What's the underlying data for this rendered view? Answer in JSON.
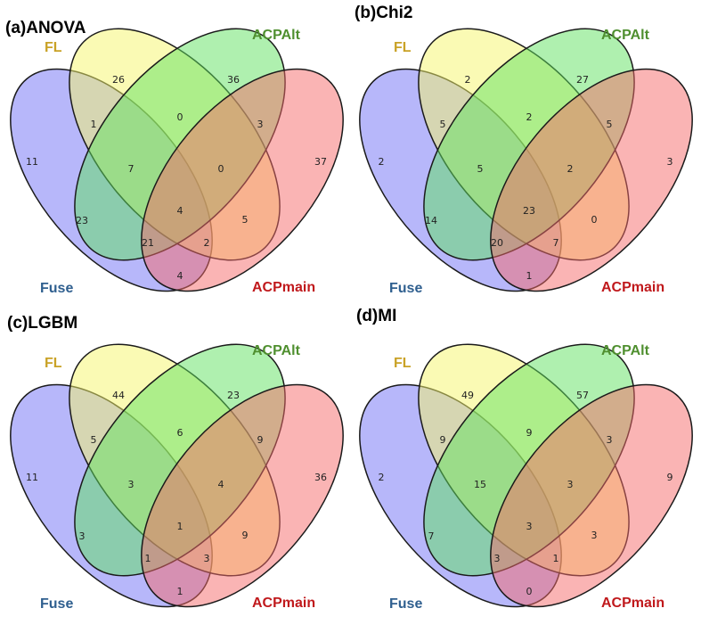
{
  "figure": {
    "panels": [
      {
        "title": "(a)ANOVA",
        "labels": {
          "FL": "FL",
          "ACPAlt": "ACPAlt",
          "Fuse": "Fuse",
          "ACPmain": "ACPmain"
        },
        "regions": {
          "Fuse": "11",
          "FL": "26",
          "ACPAlt": "36",
          "ACPmain": "37",
          "Fuse_FL": "1",
          "FL_ACPAlt": "0",
          "ACPAlt_ACPmain": "3",
          "Fuse_ACPmain": "4",
          "Fuse_ACPAlt": "23",
          "FL_ACPmain": "5",
          "Fuse_FL_ACPAlt": "7",
          "FL_ACPAlt_ACPmain": "0",
          "Fuse_ACPAlt_ACPmain": "21",
          "Fuse_FL_ACPmain": "2",
          "all": "4"
        }
      },
      {
        "title": "(b)Chi2",
        "labels": {
          "FL": "FL",
          "ACPAlt": "ACPAlt",
          "Fuse": "Fuse",
          "ACPmain": "ACPmain"
        },
        "regions": {
          "Fuse": "2",
          "FL": "2",
          "ACPAlt": "27",
          "ACPmain": "3",
          "Fuse_FL": "5",
          "FL_ACPAlt": "2",
          "ACPAlt_ACPmain": "5",
          "Fuse_ACPmain": "1",
          "Fuse_ACPAlt": "14",
          "FL_ACPmain": "0",
          "Fuse_FL_ACPAlt": "5",
          "FL_ACPAlt_ACPmain": "2",
          "Fuse_ACPAlt_ACPmain": "20",
          "Fuse_FL_ACPmain": "7",
          "all": "23"
        }
      },
      {
        "title": "(c)LGBM",
        "labels": {
          "FL": "FL",
          "ACPAlt": "ACPAlt",
          "Fuse": "Fuse",
          "ACPmain": "ACPmain"
        },
        "regions": {
          "Fuse": "11",
          "FL": "44",
          "ACPAlt": "23",
          "ACPmain": "36",
          "Fuse_FL": "5",
          "FL_ACPAlt": "6",
          "ACPAlt_ACPmain": "9",
          "Fuse_ACPmain": "1",
          "Fuse_ACPAlt": "3",
          "FL_ACPmain": "9",
          "Fuse_FL_ACPAlt": "3",
          "FL_ACPAlt_ACPmain": "4",
          "Fuse_ACPAlt_ACPmain": "1",
          "Fuse_FL_ACPmain": "3",
          "all": "1"
        }
      },
      {
        "title": "(d)MI",
        "labels": {
          "FL": "FL",
          "ACPAlt": "ACPAlt",
          "Fuse": "Fuse",
          "ACPmain": "ACPmain"
        },
        "regions": {
          "Fuse": "2",
          "FL": "49",
          "ACPAlt": "57",
          "ACPmain": "9",
          "Fuse_FL": "9",
          "FL_ACPAlt": "9",
          "ACPAlt_ACPmain": "3",
          "Fuse_ACPmain": "0",
          "Fuse_ACPAlt": "7",
          "FL_ACPmain": "3",
          "Fuse_FL_ACPAlt": "15",
          "FL_ACPAlt_ACPmain": "3",
          "Fuse_ACPAlt_ACPmain": "3",
          "Fuse_FL_ACPmain": "1",
          "all": "3"
        }
      }
    ]
  },
  "colors": {
    "Fuse_fill": "#6f6ff5",
    "FL_fill": "#f5f56a",
    "ACPAlt_fill": "#5fe25f",
    "ACPmain_fill": "#f56a6a",
    "Fuse_label": "#2f5f8f",
    "FL_label": "#c9a227",
    "ACPAlt_label": "#4f8f2f",
    "ACPmain_label": "#c0191c"
  }
}
